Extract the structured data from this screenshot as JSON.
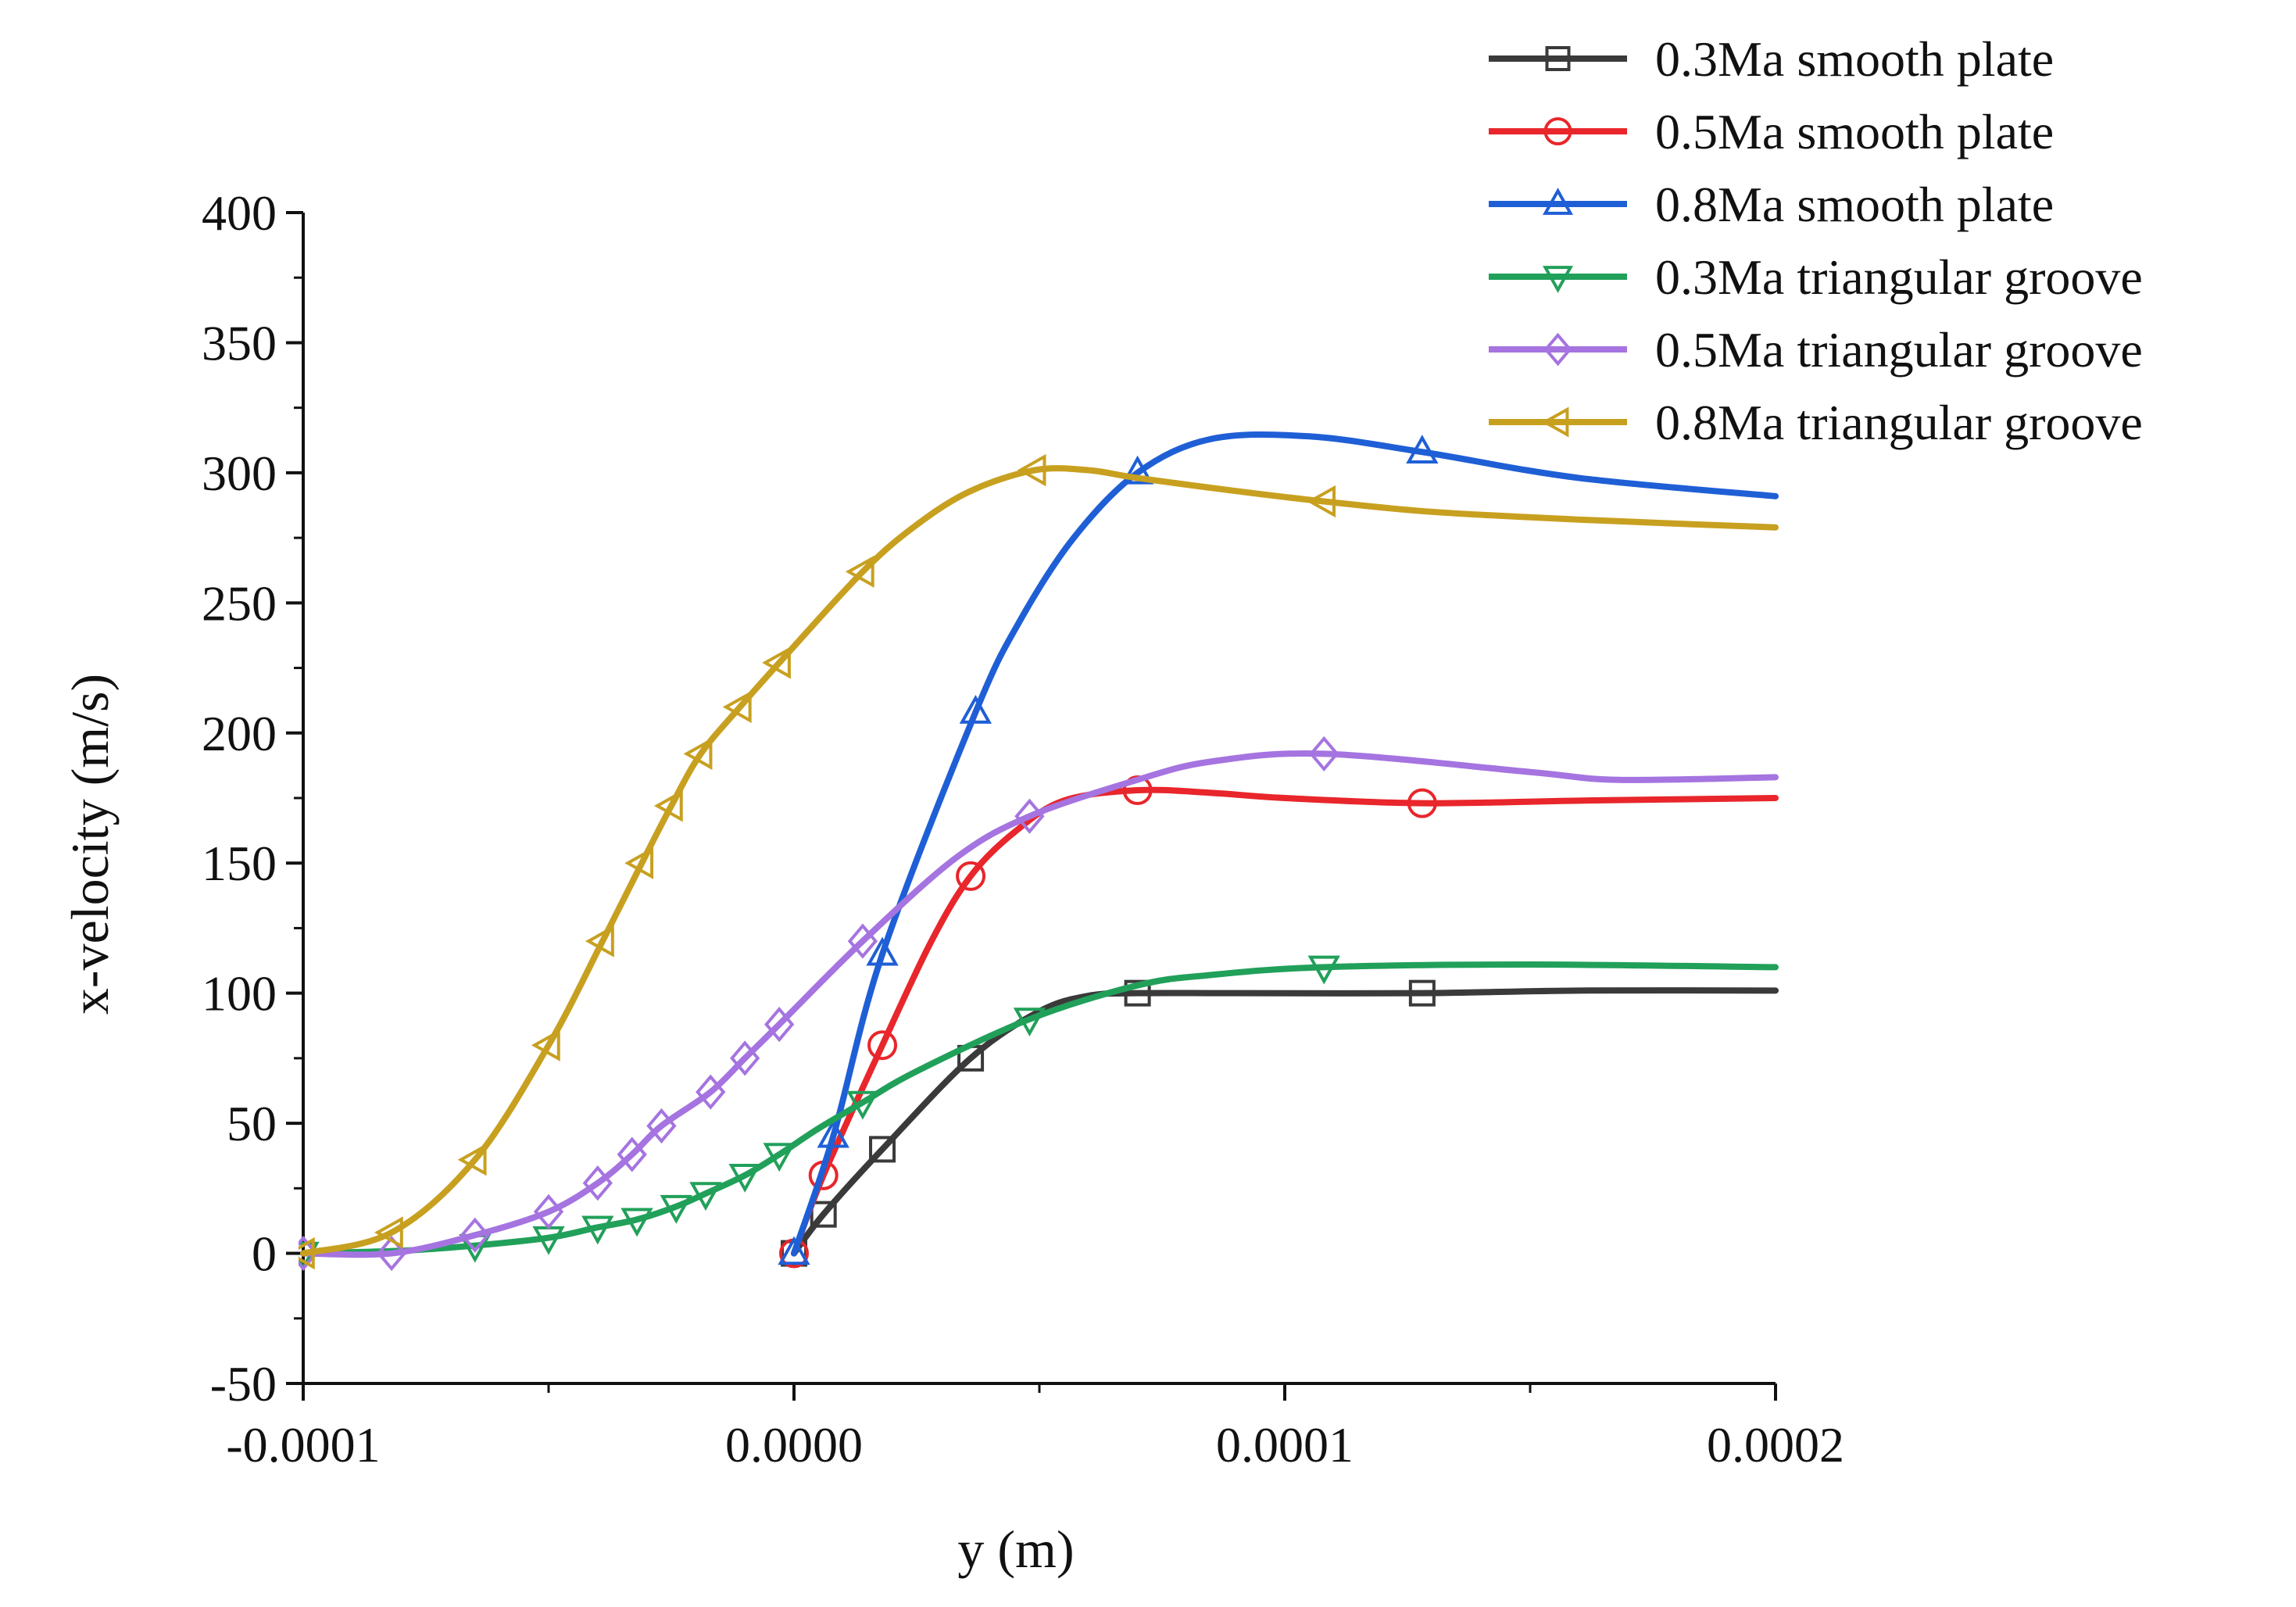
{
  "chart_data": {
    "type": "line",
    "title": "",
    "xlabel": "y (m)",
    "ylabel": "x-velocity (m/s)",
    "xlim": [
      -0.0001,
      0.0002
    ],
    "ylim": [
      -50,
      400
    ],
    "x_ticks": [
      {
        "value": -0.0001,
        "label": "-0.0001"
      },
      {
        "value": 0.0,
        "label": "0.0000"
      },
      {
        "value": 0.0001,
        "label": "0.0001"
      },
      {
        "value": 0.0002,
        "label": "0.0002"
      }
    ],
    "y_ticks": [
      {
        "value": -50,
        "label": "-50"
      },
      {
        "value": 0,
        "label": "0"
      },
      {
        "value": 50,
        "label": "50"
      },
      {
        "value": 100,
        "label": "100"
      },
      {
        "value": 150,
        "label": "150"
      },
      {
        "value": 200,
        "label": "200"
      },
      {
        "value": 250,
        "label": "250"
      },
      {
        "value": 300,
        "label": "300"
      },
      {
        "value": 350,
        "label": "350"
      },
      {
        "value": 400,
        "label": "400"
      }
    ],
    "grid": false,
    "legend_position": "top-right",
    "series": [
      {
        "name": "0.3Ma smooth plate",
        "color": "#3a3a3a",
        "marker": "square",
        "x": [
          0.0,
          6e-06,
          1.8e-05,
          3.6e-05,
          5e-05,
          6e-05,
          7e-05,
          9e-05,
          0.000128,
          0.00016,
          0.0002
        ],
        "y": [
          0,
          15,
          40,
          75,
          93,
          99,
          100,
          100,
          100,
          101,
          101
        ],
        "marker_x": [
          0.0,
          6e-06,
          1.8e-05,
          3.6e-05,
          7e-05,
          0.000128
        ],
        "marker_y": [
          0,
          15,
          40,
          75,
          100,
          100
        ]
      },
      {
        "name": "0.5Ma smooth plate",
        "color": "#e8262b",
        "marker": "circle",
        "x": [
          0.0,
          6e-06,
          1.8e-05,
          2.8e-05,
          3.6e-05,
          4.5e-05,
          5.5e-05,
          7e-05,
          8.5e-05,
          0.0001,
          0.000128,
          0.00016,
          0.0002
        ],
        "y": [
          0,
          30,
          80,
          120,
          145,
          162,
          174,
          178,
          177,
          175,
          173,
          174,
          175
        ],
        "marker_x": [
          0.0,
          6e-06,
          1.8e-05,
          3.6e-05,
          7e-05,
          0.000128
        ],
        "marker_y": [
          0,
          30,
          80,
          145,
          178,
          173
        ]
      },
      {
        "name": "0.8Ma smooth plate",
        "color": "#1f5fd6",
        "marker": "triangle-up",
        "x": [
          0.0,
          8e-06,
          1.8e-05,
          3.7e-05,
          4.6e-05,
          5.7e-05,
          7e-05,
          8.5e-05,
          0.000105,
          0.000128,
          0.00016,
          0.0002
        ],
        "y": [
          0,
          45,
          115,
          208,
          243,
          275,
          300,
          313,
          314,
          308,
          298,
          291
        ],
        "marker_x": [
          0.0,
          8e-06,
          1.8e-05,
          3.7e-05,
          7e-05,
          0.000128
        ],
        "marker_y": [
          0,
          45,
          115,
          208,
          300,
          308
        ]
      },
      {
        "name": "0.3Ma triangular groove",
        "color": "#21a05a",
        "marker": "triangle-down",
        "x": [
          -0.0001,
          -8e-05,
          -6.5e-05,
          -5e-05,
          -4e-05,
          -3.2e-05,
          -2.4e-05,
          -1.8e-05,
          -1e-05,
          -3e-06,
          5e-06,
          1.4e-05,
          2.5e-05,
          4.8e-05,
          7e-05,
          8.5e-05,
          0.000108,
          0.00015,
          0.0002
        ],
        "y": [
          0,
          1,
          3,
          6,
          10,
          13,
          18,
          23,
          30,
          38,
          48,
          58,
          70,
          90,
          103,
          107,
          110,
          111,
          110
        ],
        "marker_x": [
          -0.0001,
          -6.5e-05,
          -5e-05,
          -4e-05,
          -3.2e-05,
          -2.4e-05,
          -1.8e-05,
          -1e-05,
          -3e-06,
          1.4e-05,
          4.8e-05,
          0.000108
        ],
        "marker_y": [
          0,
          3,
          6,
          10,
          13,
          18,
          23,
          30,
          38,
          58,
          90,
          110
        ]
      },
      {
        "name": "0.5Ma triangular groove",
        "color": "#a574e0",
        "marker": "diamond",
        "x": [
          -0.0001,
          -8.2e-05,
          -6.5e-05,
          -5e-05,
          -4e-05,
          -3.3e-05,
          -2.7e-05,
          -1.7e-05,
          -1e-05,
          -3e-06,
          1.4e-05,
          3.3e-05,
          4.8e-05,
          7e-05,
          8.5e-05,
          0.000108,
          0.00015,
          0.000168,
          0.0002
        ],
        "y": [
          0,
          0,
          7,
          16,
          27,
          38,
          49,
          62,
          75,
          88,
          120,
          152,
          168,
          182,
          189,
          192,
          185,
          182,
          183
        ],
        "marker_x": [
          -0.0001,
          -8.2e-05,
          -6.5e-05,
          -5e-05,
          -4e-05,
          -3.3e-05,
          -2.7e-05,
          -1.7e-05,
          -1e-05,
          -3e-06,
          1.4e-05,
          4.8e-05,
          0.000108
        ],
        "marker_y": [
          0,
          0,
          7,
          16,
          27,
          38,
          49,
          62,
          75,
          88,
          120,
          168,
          192
        ]
      },
      {
        "name": "0.8Ma triangular groove",
        "color": "#c8a020",
        "marker": "triangle-left",
        "x": [
          -0.0001,
          -8.2e-05,
          -6.5e-05,
          -5e-05,
          -3.9e-05,
          -3.1e-05,
          -2.5e-05,
          -1.9e-05,
          -1.1e-05,
          -3e-06,
          1.4e-05,
          2.5e-05,
          3.6e-05,
          4.9e-05,
          6e-05,
          7e-05,
          9e-05,
          0.000108,
          0.00013,
          0.00016,
          0.0002
        ],
        "y": [
          0,
          8,
          36,
          80,
          120,
          150,
          172,
          192,
          210,
          227,
          262,
          280,
          293,
          301,
          301,
          298,
          293,
          289,
          285,
          282,
          279
        ],
        "marker_x": [
          -0.0001,
          -8.2e-05,
          -6.5e-05,
          -5e-05,
          -3.9e-05,
          -3.1e-05,
          -2.5e-05,
          -1.9e-05,
          -1.1e-05,
          -3e-06,
          1.4e-05,
          4.9e-05,
          0.000108
        ],
        "marker_y": [
          0,
          8,
          36,
          80,
          120,
          150,
          172,
          192,
          210,
          227,
          262,
          301,
          289
        ]
      }
    ]
  }
}
